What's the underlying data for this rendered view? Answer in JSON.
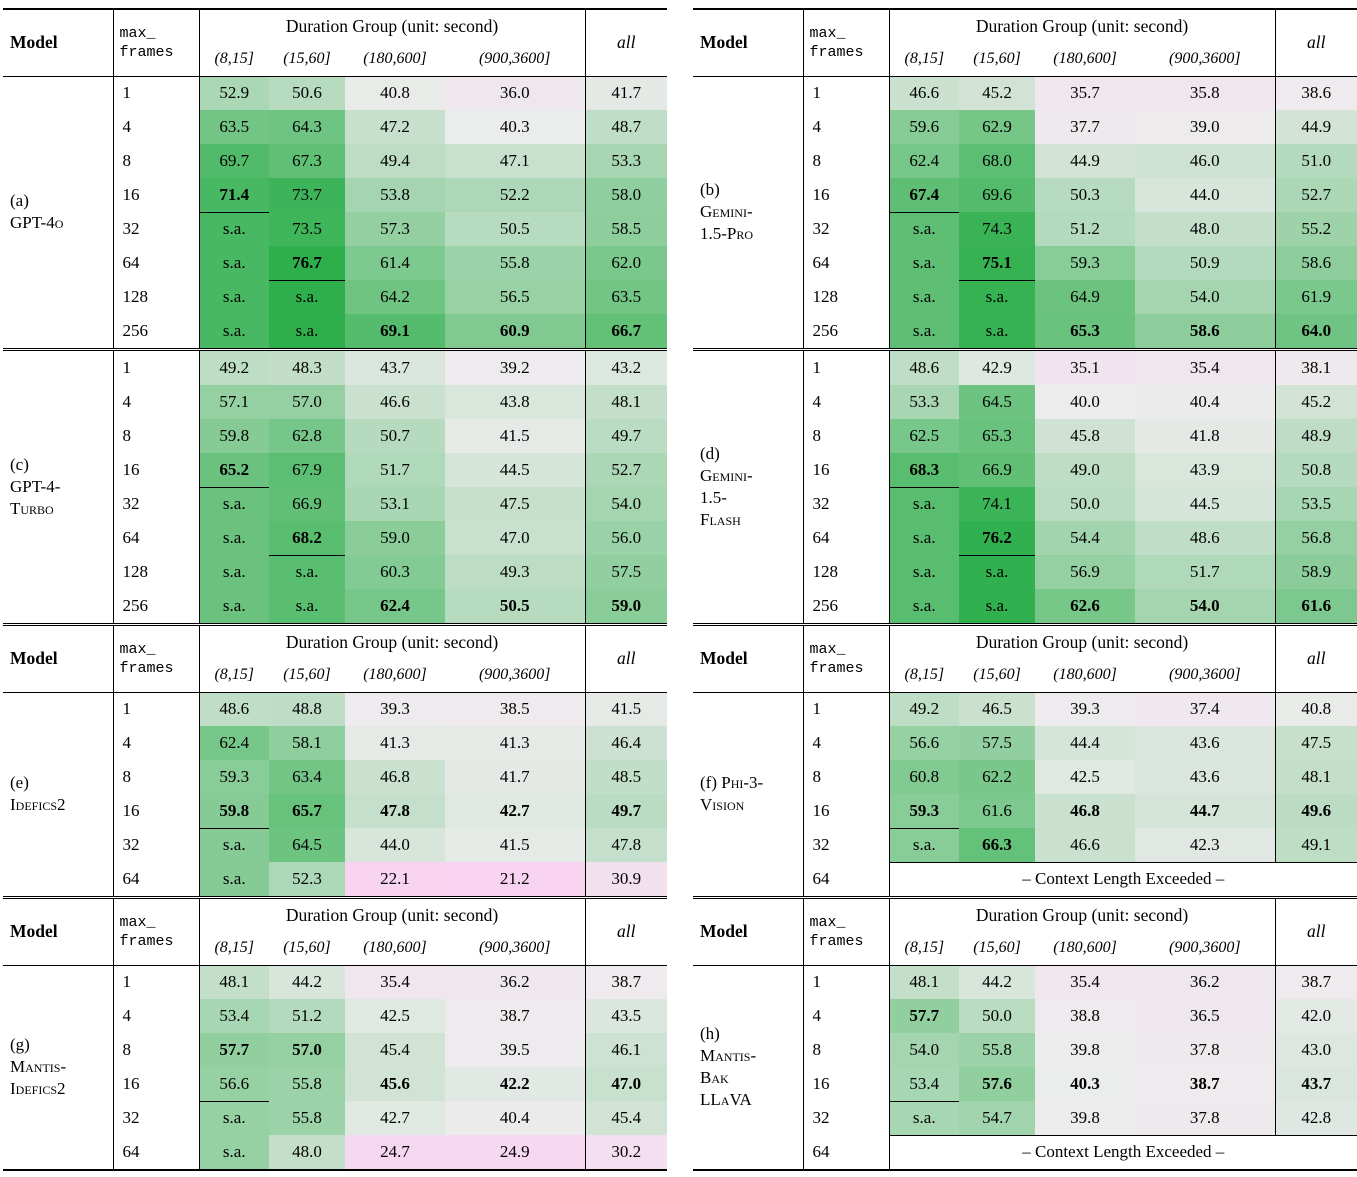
{
  "header": {
    "model": "Model",
    "max_frames_line1": "max_",
    "max_frames_line2": "frames",
    "duration_group": "Duration Group (unit: second)",
    "duration_cols": [
      "(8,15]",
      "(15,60]",
      "(180,600]",
      "(900,3600]"
    ],
    "all": "all"
  },
  "sa_label": "s.a.",
  "context_exceeded_label": "– Context Length Exceeded –",
  "colormap": {
    "low_value": 20,
    "mid_value": 40,
    "high_value": 77,
    "pink_rgb": [
      249,
      209,
      241
    ],
    "neutral_rgb": [
      237,
      236,
      237
    ],
    "green_rgb": [
      44,
      175,
      74
    ]
  },
  "columns": {
    "left": [
      {
        "id": "a",
        "show_header": true,
        "model_lines": [
          "(a)",
          "GPT-4o"
        ],
        "rows": [
          {
            "f": "1",
            "v": [
              "52.9",
              "50.6",
              "40.8",
              "36.0",
              "41.7"
            ]
          },
          {
            "f": "4",
            "v": [
              "63.5",
              "64.3",
              "47.2",
              "40.3",
              "48.7"
            ]
          },
          {
            "f": "8",
            "v": [
              "69.7",
              "67.3",
              "49.4",
              "47.1",
              "53.3"
            ]
          },
          {
            "f": "16",
            "v": [
              "71.4",
              "73.7",
              "53.8",
              "52.2",
              "58.0"
            ],
            "b": [
              1,
              0,
              0,
              0,
              0
            ]
          },
          {
            "f": "32",
            "v": [
              "s.a.",
              "73.5",
              "57.3",
              "50.5",
              "58.5"
            ]
          },
          {
            "f": "64",
            "v": [
              "s.a.",
              "76.7",
              "61.4",
              "55.8",
              "62.0"
            ],
            "b": [
              0,
              1,
              0,
              0,
              0
            ]
          },
          {
            "f": "128",
            "v": [
              "s.a.",
              "s.a.",
              "64.2",
              "56.5",
              "63.5"
            ]
          },
          {
            "f": "256",
            "v": [
              "s.a.",
              "s.a.",
              "69.1",
              "60.9",
              "66.7"
            ],
            "b": [
              0,
              0,
              1,
              1,
              1
            ]
          }
        ]
      },
      {
        "id": "c",
        "show_header": false,
        "model_lines": [
          "(c)",
          "GPT-4-",
          "Turbo"
        ],
        "rows": [
          {
            "f": "1",
            "v": [
              "49.2",
              "48.3",
              "43.7",
              "39.2",
              "43.2"
            ]
          },
          {
            "f": "4",
            "v": [
              "57.1",
              "57.0",
              "46.6",
              "43.8",
              "48.1"
            ]
          },
          {
            "f": "8",
            "v": [
              "59.8",
              "62.8",
              "50.7",
              "41.5",
              "49.7"
            ]
          },
          {
            "f": "16",
            "v": [
              "65.2",
              "67.9",
              "51.7",
              "44.5",
              "52.7"
            ],
            "b": [
              1,
              0,
              0,
              0,
              0
            ]
          },
          {
            "f": "32",
            "v": [
              "s.a.",
              "66.9",
              "53.1",
              "47.5",
              "54.0"
            ]
          },
          {
            "f": "64",
            "v": [
              "s.a.",
              "68.2",
              "59.0",
              "47.0",
              "56.0"
            ],
            "b": [
              0,
              1,
              0,
              0,
              0
            ]
          },
          {
            "f": "128",
            "v": [
              "s.a.",
              "s.a.",
              "60.3",
              "49.3",
              "57.5"
            ]
          },
          {
            "f": "256",
            "v": [
              "s.a.",
              "s.a.",
              "62.4",
              "50.5",
              "59.0"
            ],
            "b": [
              0,
              0,
              1,
              1,
              1
            ]
          }
        ]
      },
      {
        "id": "e",
        "show_header": true,
        "model_lines": [
          "(e)",
          "Idefics2"
        ],
        "rows": [
          {
            "f": "1",
            "v": [
              "48.6",
              "48.8",
              "39.3",
              "38.5",
              "41.5"
            ]
          },
          {
            "f": "4",
            "v": [
              "62.4",
              "58.1",
              "41.3",
              "41.3",
              "46.4"
            ]
          },
          {
            "f": "8",
            "v": [
              "59.3",
              "63.4",
              "46.8",
              "41.7",
              "48.5"
            ]
          },
          {
            "f": "16",
            "v": [
              "59.8",
              "65.7",
              "47.8",
              "42.7",
              "49.7"
            ],
            "b": [
              1,
              1,
              1,
              1,
              1
            ]
          },
          {
            "f": "32",
            "v": [
              "s.a.",
              "64.5",
              "44.0",
              "41.5",
              "47.8"
            ]
          },
          {
            "f": "64",
            "v": [
              "s.a.",
              "52.3",
              "22.1",
              "21.2",
              "30.9"
            ]
          }
        ]
      },
      {
        "id": "g",
        "show_header": true,
        "model_lines": [
          "(g)",
          "Mantis-",
          "Idefics2"
        ],
        "rows": [
          {
            "f": "1",
            "v": [
              "48.1",
              "44.2",
              "35.4",
              "36.2",
              "38.7"
            ]
          },
          {
            "f": "4",
            "v": [
              "53.4",
              "51.2",
              "42.5",
              "38.7",
              "43.5"
            ]
          },
          {
            "f": "8",
            "v": [
              "57.7",
              "57.0",
              "45.4",
              "39.5",
              "46.1"
            ],
            "b": [
              1,
              1,
              0,
              0,
              0
            ]
          },
          {
            "f": "16",
            "v": [
              "56.6",
              "55.8",
              "45.6",
              "42.2",
              "47.0"
            ],
            "b": [
              0,
              0,
              1,
              1,
              1
            ]
          },
          {
            "f": "32",
            "v": [
              "s.a.",
              "55.8",
              "42.7",
              "40.4",
              "45.4"
            ]
          },
          {
            "f": "64",
            "v": [
              "s.a.",
              "48.0",
              "24.7",
              "24.9",
              "30.2"
            ]
          }
        ]
      }
    ],
    "right": [
      {
        "id": "b",
        "show_header": true,
        "model_lines": [
          "(b)",
          "Gemini-",
          "1.5-Pro"
        ],
        "rows": [
          {
            "f": "1",
            "v": [
              "46.6",
              "45.2",
              "35.7",
              "35.8",
              "38.6"
            ]
          },
          {
            "f": "4",
            "v": [
              "59.6",
              "62.9",
              "37.7",
              "39.0",
              "44.9"
            ]
          },
          {
            "f": "8",
            "v": [
              "62.4",
              "68.0",
              "44.9",
              "46.0",
              "51.0"
            ]
          },
          {
            "f": "16",
            "v": [
              "67.4",
              "69.6",
              "50.3",
              "44.0",
              "52.7"
            ],
            "b": [
              1,
              0,
              0,
              0,
              0
            ]
          },
          {
            "f": "32",
            "v": [
              "s.a.",
              "74.3",
              "51.2",
              "48.0",
              "55.2"
            ]
          },
          {
            "f": "64",
            "v": [
              "s.a.",
              "75.1",
              "59.3",
              "50.9",
              "58.6"
            ],
            "b": [
              0,
              1,
              0,
              0,
              0
            ]
          },
          {
            "f": "128",
            "v": [
              "s.a.",
              "s.a.",
              "64.9",
              "54.0",
              "61.9"
            ]
          },
          {
            "f": "256",
            "v": [
              "s.a.",
              "s.a.",
              "65.3",
              "58.6",
              "64.0"
            ],
            "b": [
              0,
              0,
              1,
              1,
              1
            ]
          }
        ]
      },
      {
        "id": "d",
        "show_header": false,
        "model_lines": [
          "(d)",
          "Gemini-",
          "1.5-",
          "Flash"
        ],
        "rows": [
          {
            "f": "1",
            "v": [
              "48.6",
              "42.9",
              "35.1",
              "35.4",
              "38.1"
            ]
          },
          {
            "f": "4",
            "v": [
              "53.3",
              "64.5",
              "40.0",
              "40.4",
              "45.2"
            ]
          },
          {
            "f": "8",
            "v": [
              "62.5",
              "65.3",
              "45.8",
              "41.8",
              "48.9"
            ]
          },
          {
            "f": "16",
            "v": [
              "68.3",
              "66.9",
              "49.0",
              "43.9",
              "50.8"
            ],
            "b": [
              1,
              0,
              0,
              0,
              0
            ]
          },
          {
            "f": "32",
            "v": [
              "s.a.",
              "74.1",
              "50.0",
              "44.5",
              "53.5"
            ]
          },
          {
            "f": "64",
            "v": [
              "s.a.",
              "76.2",
              "54.4",
              "48.6",
              "56.8"
            ],
            "b": [
              0,
              1,
              0,
              0,
              0
            ]
          },
          {
            "f": "128",
            "v": [
              "s.a.",
              "s.a.",
              "56.9",
              "51.7",
              "58.9"
            ]
          },
          {
            "f": "256",
            "v": [
              "s.a.",
              "s.a.",
              "62.6",
              "54.0",
              "61.6"
            ],
            "b": [
              0,
              0,
              1,
              1,
              1
            ]
          }
        ]
      },
      {
        "id": "f",
        "show_header": true,
        "model_lines": [
          "(f) Phi-3-",
          "Vision"
        ],
        "rows": [
          {
            "f": "1",
            "v": [
              "49.2",
              "46.5",
              "39.3",
              "37.4",
              "40.8"
            ]
          },
          {
            "f": "4",
            "v": [
              "56.6",
              "57.5",
              "44.4",
              "43.6",
              "47.5"
            ]
          },
          {
            "f": "8",
            "v": [
              "60.8",
              "62.2",
              "42.5",
              "43.6",
              "48.1"
            ]
          },
          {
            "f": "16",
            "v": [
              "59.3",
              "61.6",
              "46.8",
              "44.7",
              "49.6"
            ],
            "b": [
              1,
              0,
              1,
              1,
              1
            ]
          },
          {
            "f": "32",
            "v": [
              "s.a.",
              "66.3",
              "46.6",
              "42.3",
              "49.1"
            ],
            "b": [
              0,
              1,
              0,
              0,
              0
            ]
          },
          {
            "f": "64",
            "exceeded": true
          }
        ]
      },
      {
        "id": "h",
        "show_header": true,
        "model_lines": [
          "(h)",
          "Mantis-",
          "Bak",
          "LLaVA"
        ],
        "rows": [
          {
            "f": "1",
            "v": [
              "48.1",
              "44.2",
              "35.4",
              "36.2",
              "38.7"
            ]
          },
          {
            "f": "4",
            "v": [
              "57.7",
              "50.0",
              "38.8",
              "36.5",
              "42.0"
            ],
            "b": [
              1,
              0,
              0,
              0,
              0
            ]
          },
          {
            "f": "8",
            "v": [
              "54.0",
              "55.8",
              "39.8",
              "37.8",
              "43.0"
            ]
          },
          {
            "f": "16",
            "v": [
              "53.4",
              "57.6",
              "40.3",
              "38.7",
              "43.7"
            ],
            "b": [
              0,
              1,
              1,
              1,
              1
            ]
          },
          {
            "f": "32",
            "v": [
              "s.a.",
              "54.7",
              "39.8",
              "37.8",
              "42.8"
            ]
          },
          {
            "f": "64",
            "exceeded": true
          }
        ]
      }
    ]
  }
}
